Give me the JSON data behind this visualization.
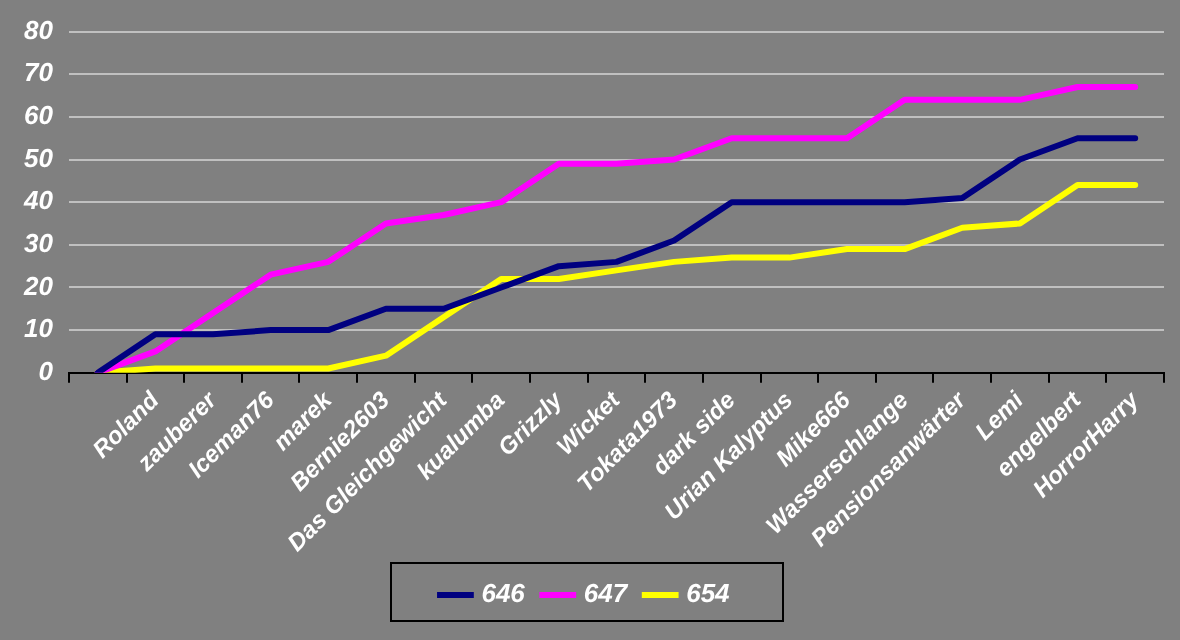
{
  "chart_data": {
    "type": "line",
    "categories": [
      null,
      "Roland",
      "zauberer",
      "Iceman76",
      "marek",
      "Bernie2603",
      "Das Gleichgewicht",
      "kualumba",
      "Grizzly",
      "Wicket",
      "Tokata1973",
      "dark side",
      "Urian Kalyptus",
      "Mike666",
      "Wasserschlange",
      "Pensionsanwärter",
      "Lemi",
      "engelbert",
      "HorrorHarry"
    ],
    "series": [
      {
        "name": "646",
        "color": "#000080",
        "values": [
          0,
          9,
          9,
          10,
          10,
          15,
          15,
          20,
          25,
          26,
          31,
          40,
          40,
          40,
          40,
          41,
          50,
          55,
          55
        ]
      },
      {
        "name": "647",
        "color": "#ff00ff",
        "values": [
          0,
          5,
          14,
          23,
          26,
          35,
          37,
          40,
          49,
          49,
          50,
          55,
          55,
          55,
          64,
          64,
          64,
          67,
          67
        ]
      },
      {
        "name": "654",
        "color": "#ffff00",
        "values": [
          0,
          1,
          1,
          1,
          1,
          4,
          13,
          22,
          22,
          24,
          26,
          27,
          27,
          29,
          29,
          34,
          35,
          44,
          44
        ]
      }
    ],
    "ylim": [
      0,
      80
    ],
    "yticks": [
      0,
      10,
      20,
      30,
      40,
      50,
      60,
      70,
      80
    ],
    "grid": "y",
    "legend": "bottom",
    "marker": "none",
    "line_style": "solid"
  }
}
